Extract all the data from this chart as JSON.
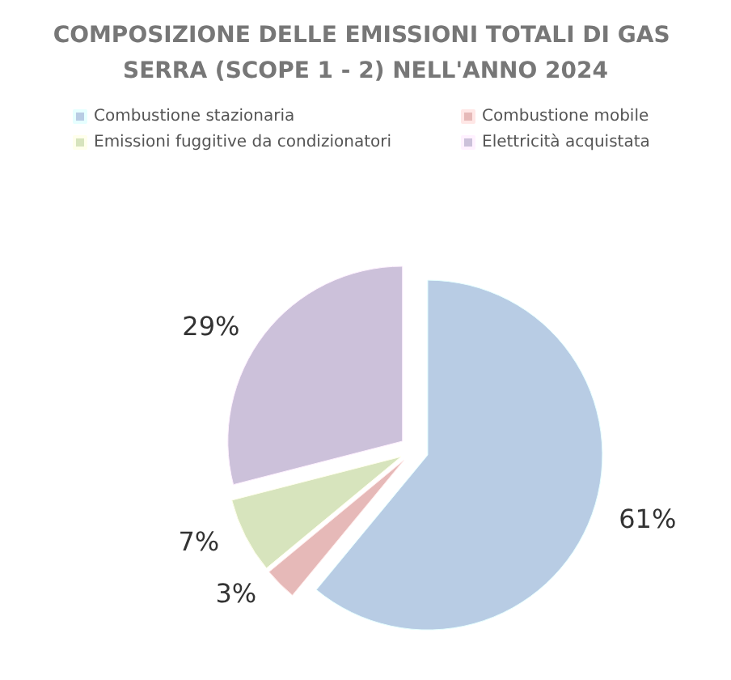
{
  "chart_data": {
    "type": "pie",
    "title": "COMPOSIZIONE DELLE EMISSIONI TOTALI DI GAS SERRA (SCOPE 1 - 2) NELL'ANNO 2024",
    "categories": [
      "Combustione stazionaria",
      "Combustione mobile",
      "Emissioni fuggitive da condizionatori",
      "Elettricità acquistata"
    ],
    "values": [
      61,
      3,
      7,
      29
    ],
    "colors": [
      "#b8cce4",
      "#e6b9b8",
      "#d7e4bd",
      "#ccc1da"
    ],
    "value_labels": [
      "61%",
      "3%",
      "7%",
      "29%"
    ],
    "legend": "top"
  }
}
